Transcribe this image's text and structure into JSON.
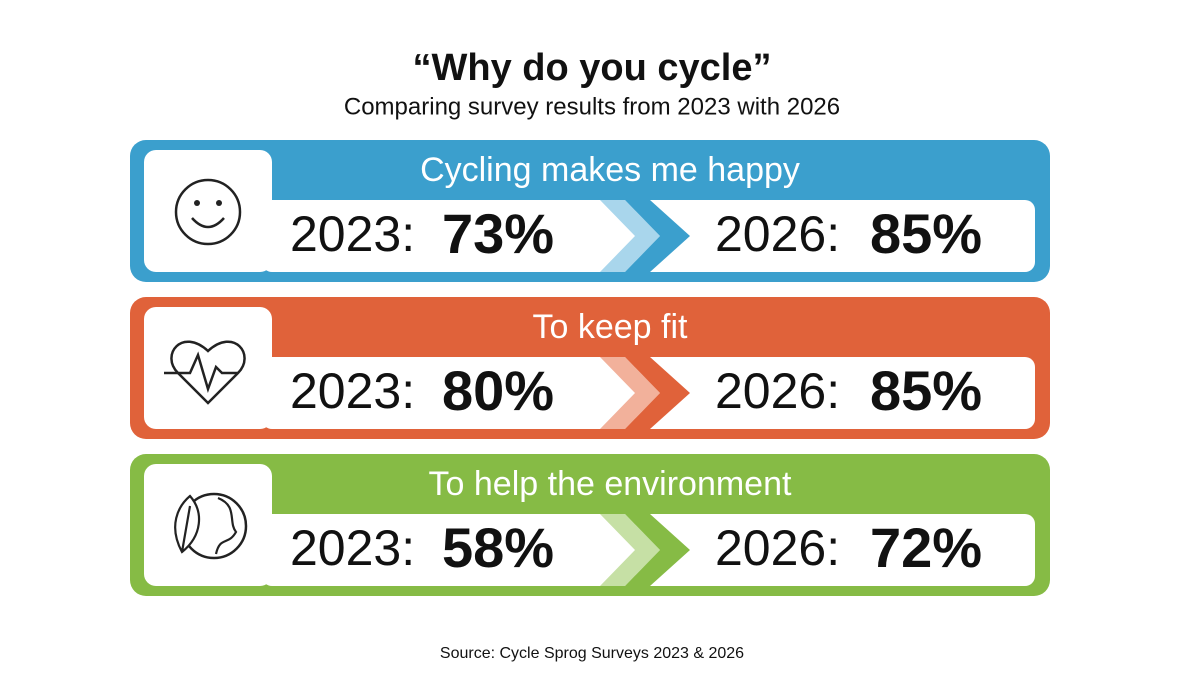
{
  "title": "“Why do you cycle”",
  "subtitle": "Comparing survey results from 2023 with 2026",
  "rows": [
    {
      "label": "Cycling makes me happy",
      "before_year": "2023:",
      "before": "73%",
      "after_year": "2026:",
      "after": "85%"
    },
    {
      "label": "To keep fit",
      "before_year": "2023:",
      "before": "80%",
      "after_year": "2026:",
      "after": "85%"
    },
    {
      "label": "To help the environment",
      "before_year": "2023:",
      "before": "58%",
      "after_year": "2026:",
      "after": "72%"
    }
  ],
  "source": "Source: Cycle Sprog Surveys 2023 & 2026"
}
